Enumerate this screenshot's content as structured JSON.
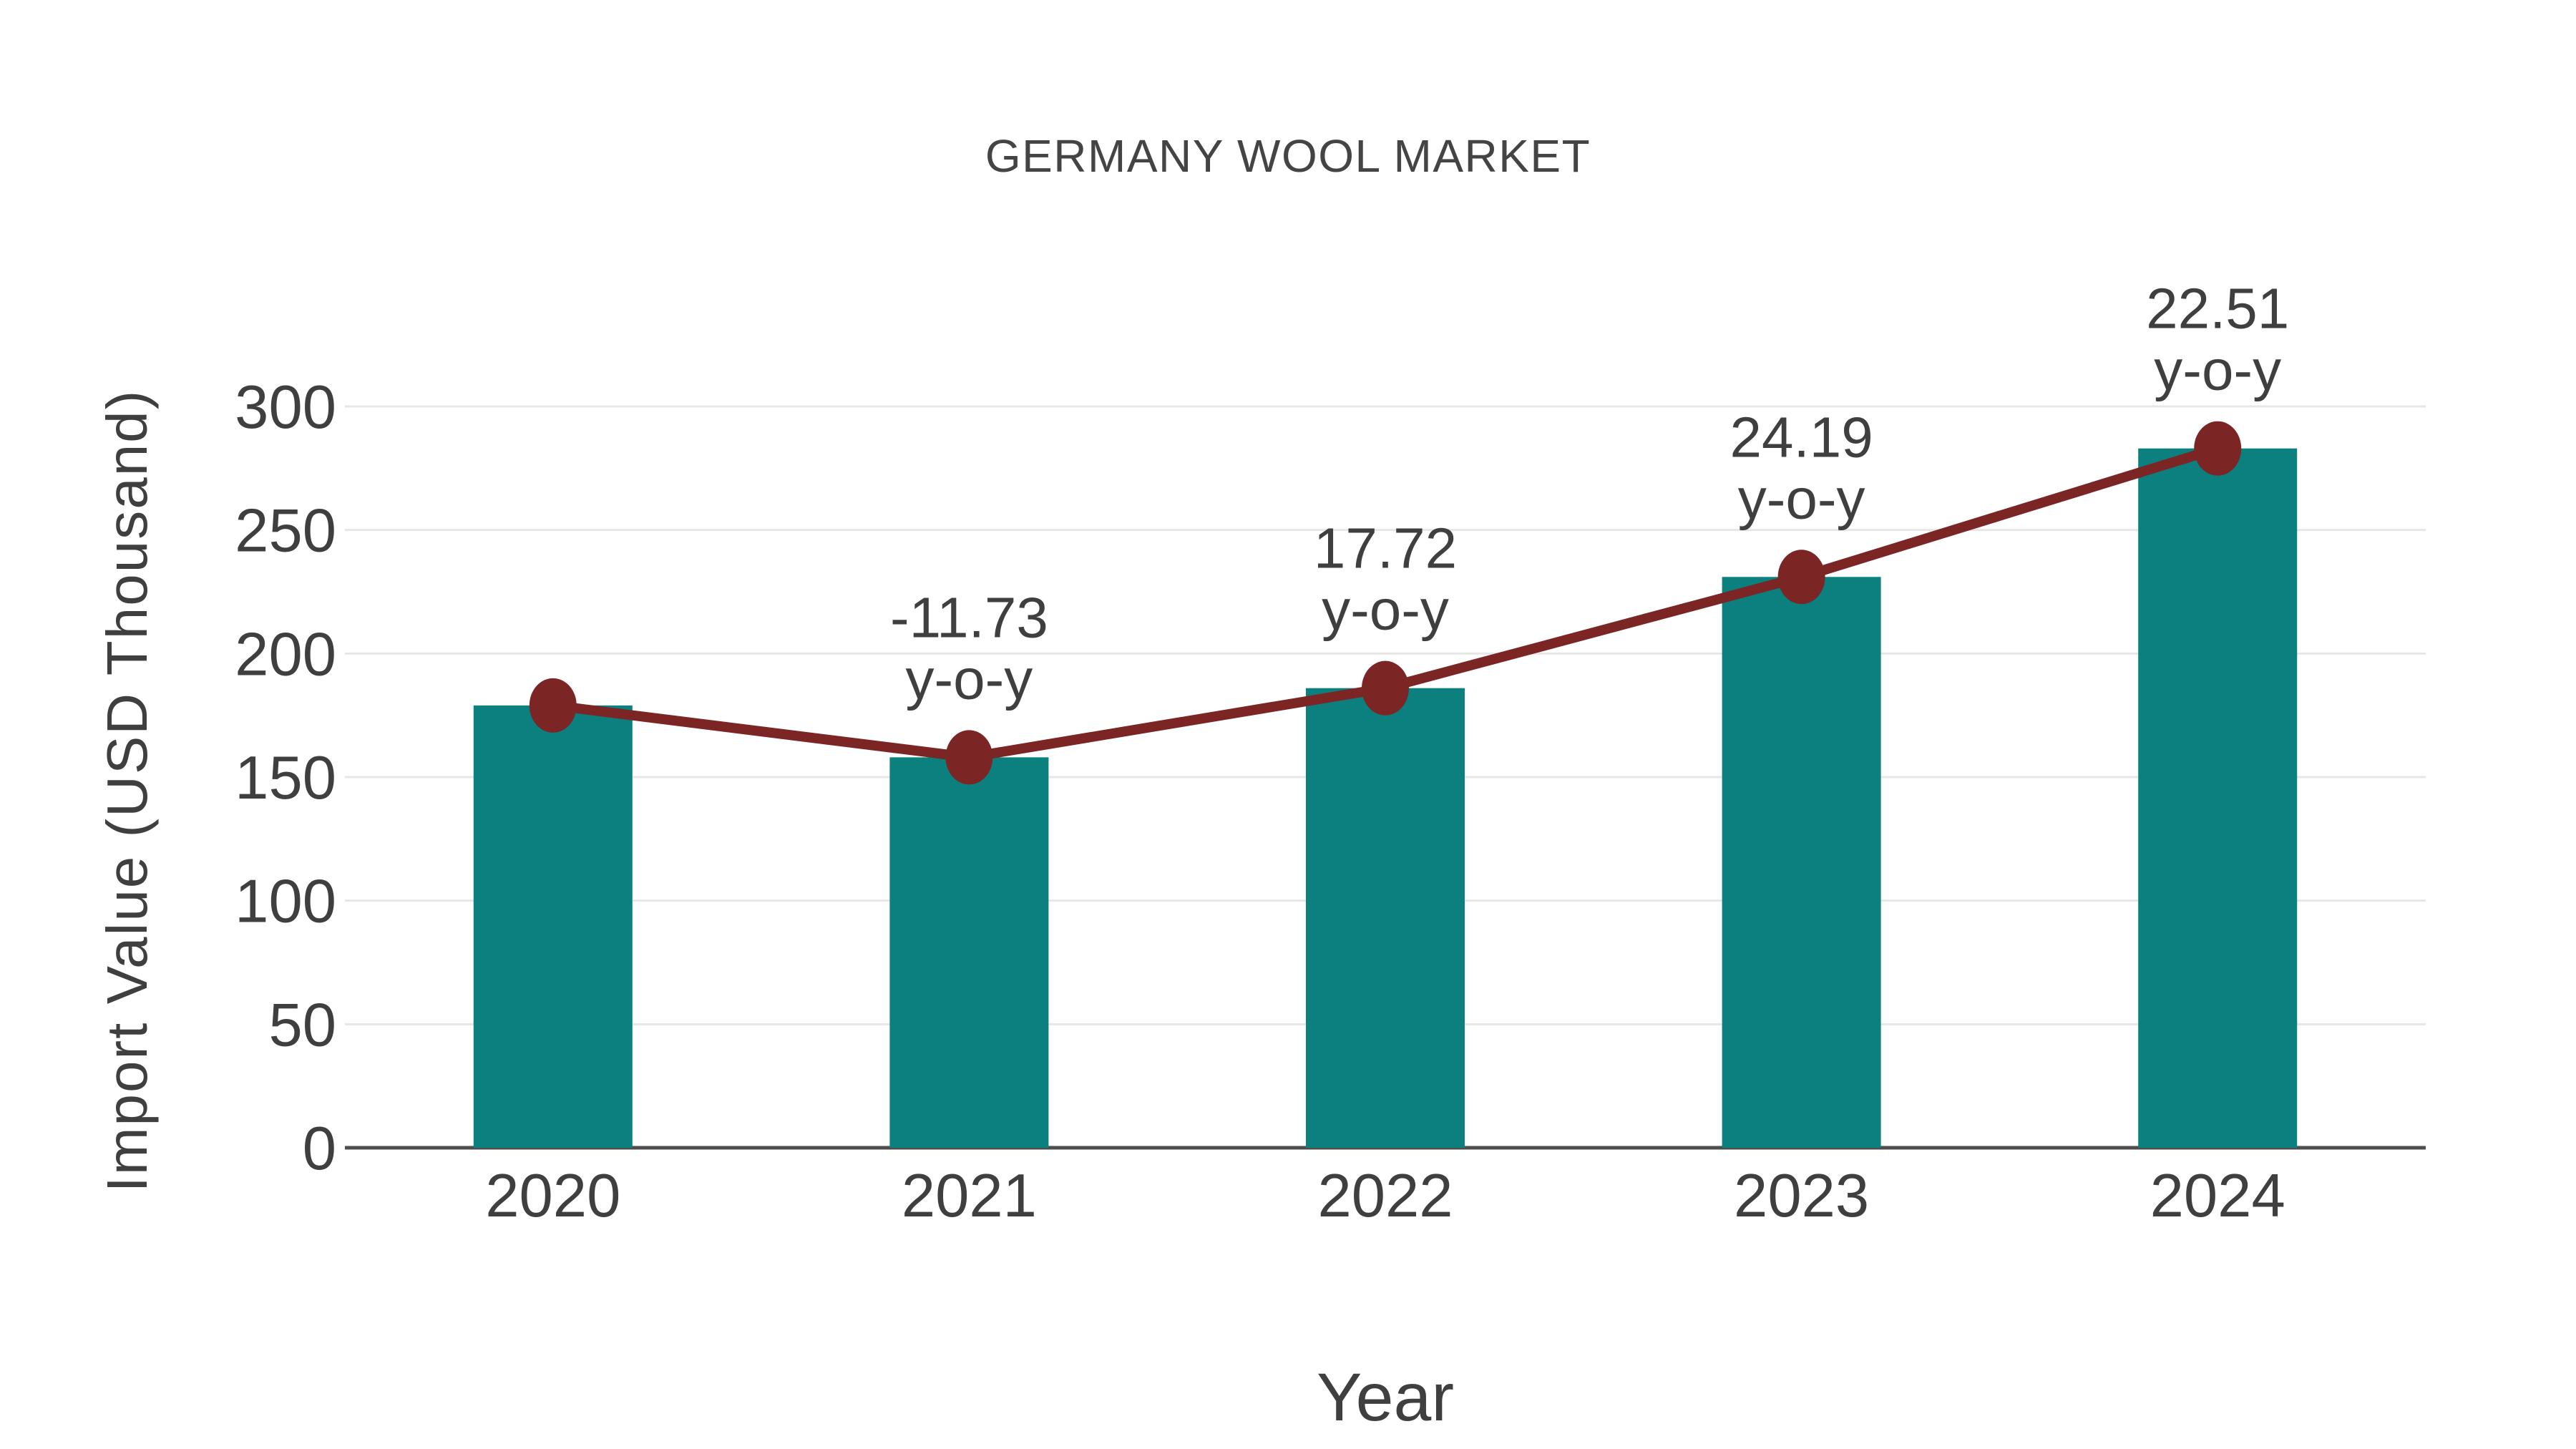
{
  "header": {
    "title": "GERMANY WOOL MARKET"
  },
  "chart_data": {
    "type": "bar",
    "title": "GERMANY WOOL MARKET",
    "xlabel": "Year",
    "ylabel": "Import Value (USD Thousand)",
    "categories": [
      "2020",
      "2021",
      "2022",
      "2023",
      "2024"
    ],
    "series": [
      {
        "name": "Import Value (USD Thousand)",
        "type": "bar",
        "values": [
          179,
          158,
          186,
          231,
          283
        ],
        "color": "#0B807E"
      },
      {
        "name": "Import Value trend",
        "type": "line",
        "values": [
          179,
          158,
          186,
          231,
          283
        ],
        "color": "#7C2525"
      }
    ],
    "annotations": [
      {
        "category": "2021",
        "lines": [
          "-11.73",
          "y-o-y"
        ]
      },
      {
        "category": "2022",
        "lines": [
          "17.72",
          "y-o-y"
        ]
      },
      {
        "category": "2023",
        "lines": [
          "24.19",
          "y-o-y"
        ]
      },
      {
        "category": "2024",
        "lines": [
          "22.51",
          "y-o-y"
        ]
      }
    ],
    "ylim": [
      0,
      300
    ],
    "yticks": [
      0,
      50,
      100,
      150,
      200,
      250,
      300
    ],
    "grid": "horizontal",
    "legend_position": "none",
    "colors": {
      "bar": "#0B807E",
      "line": "#7C2525",
      "grid": "#E7E7E7",
      "axis": "#4D4D4D",
      "text": "#3F3F3F",
      "title": "#444444"
    }
  }
}
